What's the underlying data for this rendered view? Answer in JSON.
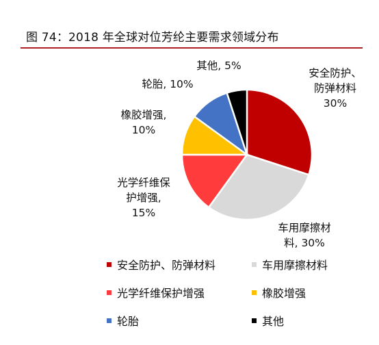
{
  "header": {
    "title": "图 74：2018 年全球对位芳纶主要需求领域分布"
  },
  "chart_data": {
    "type": "pie",
    "title": "",
    "slices": [
      {
        "name": "安全防护、防弹材料",
        "value": 30,
        "color": "#c00000",
        "label_lines": [
          "安全防护、",
          "防弹材料",
          "30%"
        ]
      },
      {
        "name": "车用摩擦材料",
        "value": 30,
        "color": "#d9d9d9",
        "label_lines": [
          "车用摩擦材",
          "料, 30%"
        ]
      },
      {
        "name": "光学纤维保护增强",
        "value": 15,
        "color": "#ff3b3b",
        "label_lines": [
          "光学纤维保",
          "护增强,",
          "15%"
        ]
      },
      {
        "name": "橡胶增强",
        "value": 10,
        "color": "#ffc000",
        "label_lines": [
          "橡胶增强,",
          "10%"
        ]
      },
      {
        "name": "轮胎",
        "value": 10,
        "color": "#4472c4",
        "label_lines": [
          "轮胎, 10%"
        ]
      },
      {
        "name": "其他",
        "value": 5,
        "color": "#000000",
        "label_lines": [
          "其他, 5%"
        ]
      }
    ],
    "legend": {
      "placement": "bottom",
      "items": [
        "安全防护、防弹材料",
        "车用摩擦材料",
        "光学纤维保护增强",
        "橡胶增强",
        "轮胎",
        "其他"
      ]
    }
  }
}
